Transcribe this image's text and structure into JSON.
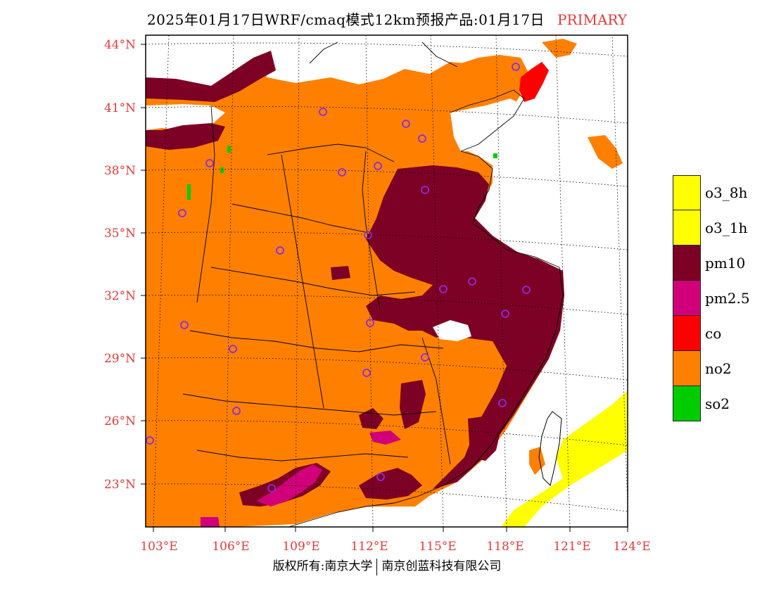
{
  "title": {
    "main": "2025年01月17日WRF/cmaq模式12km预报产品:01月17日",
    "tag": "PRIMARY"
  },
  "map": {
    "lat_labels": [
      "44°N",
      "41°N",
      "38°N",
      "35°N",
      "32°N",
      "29°N",
      "26°N",
      "23°N"
    ],
    "lon_labels": [
      "103°E",
      "106°E",
      "109°E",
      "112°E",
      "115°E",
      "118°E",
      "121°E",
      "124°E"
    ],
    "extent": {
      "lon_min": 102.7,
      "lon_max": 124,
      "lat_min": 21,
      "lat_max": 44.6
    },
    "station_color": "#8a2be2",
    "colors": {
      "no2": "#ff8000",
      "pm10": "#7d0025",
      "pm25": "#d1007a",
      "co": "#ff0000",
      "so2": "#00cc00",
      "o3": "#ffff00"
    }
  },
  "legend": [
    {
      "label": "o3_8h",
      "color": "#ffff00"
    },
    {
      "label": "o3_1h",
      "color": "#ffff00"
    },
    {
      "label": "pm10",
      "color": "#7d0025"
    },
    {
      "label": "pm2.5",
      "color": "#d1007a"
    },
    {
      "label": "co",
      "color": "#ff0000"
    },
    {
      "label": "no2",
      "color": "#ff8000"
    },
    {
      "label": "so2",
      "color": "#00cc00"
    }
  ],
  "footer": {
    "left": "版权所有:南京大学",
    "right": "南京创蓝科技有限公司"
  }
}
